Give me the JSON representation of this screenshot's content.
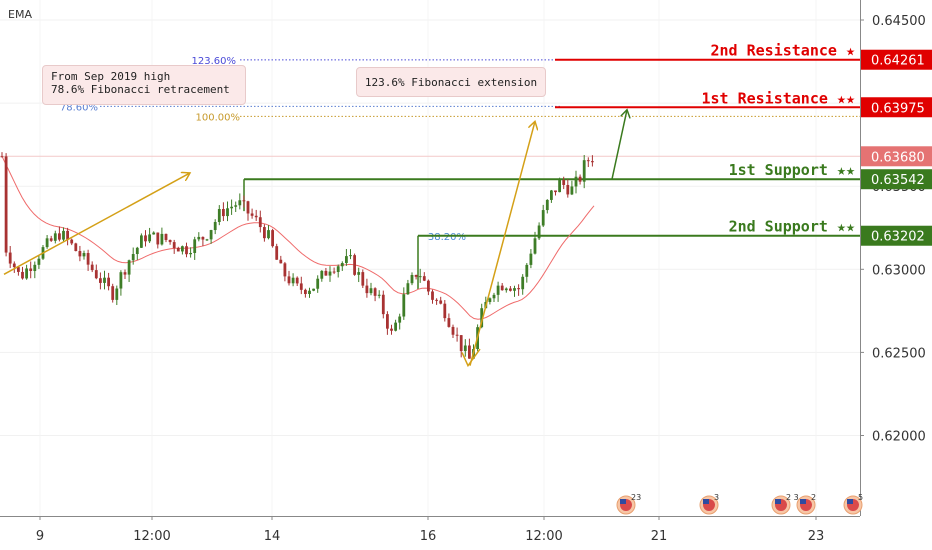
{
  "chart_data": {
    "type": "candlestick",
    "indicator_label": "EMA",
    "y_ticks": [
      "0.64500",
      "0.64000",
      "0.63500",
      "0.63000",
      "0.62500",
      "0.62000"
    ],
    "y_range": [
      0.6165,
      0.6478
    ],
    "x_ticks": [
      "9",
      "12:00",
      "14",
      "16",
      "12:00",
      "21",
      "23"
    ],
    "levels": [
      {
        "name": "2nd Resistance ★",
        "label": "0.64261",
        "value": 0.64261,
        "kind": "resistance"
      },
      {
        "name": "1st Resistance ★★",
        "label": "0.63975",
        "value": 0.63975,
        "kind": "resistance"
      },
      {
        "name": "1st Support ★★",
        "label": "0.63542",
        "value": 0.63542,
        "kind": "support"
      },
      {
        "name": "2nd Support ★★",
        "label": "0.63202",
        "value": 0.63202,
        "kind": "support"
      }
    ],
    "current_price": {
      "label": "0.63680",
      "value": 0.6368
    },
    "fib_levels": [
      {
        "label": "123.60%",
        "value": 0.6426
      },
      {
        "label": "78.60%",
        "value": 0.6398
      },
      {
        "label": "100.00%",
        "value": 0.6392
      },
      {
        "label": "38.20%",
        "value": 0.632
      }
    ],
    "annotations": [
      {
        "lines": [
          "From Sep 2019 high",
          "78.6% Fibonacci retracement"
        ]
      },
      {
        "lines": [
          "123.6% Fibonacci extension"
        ]
      }
    ],
    "events": [
      "23",
      "3",
      "2",
      "3",
      "2",
      "5"
    ],
    "colors": {
      "up": "#3e7d27",
      "down": "#a83232",
      "ema": "#ef6b6b",
      "resistance": "#e00000",
      "support": "#3a7a1e",
      "current": "#e57373",
      "fib_blue": "#4a4ad8",
      "fib_gold": "#c79a2c",
      "arrow_gold": "#d4a017"
    }
  }
}
